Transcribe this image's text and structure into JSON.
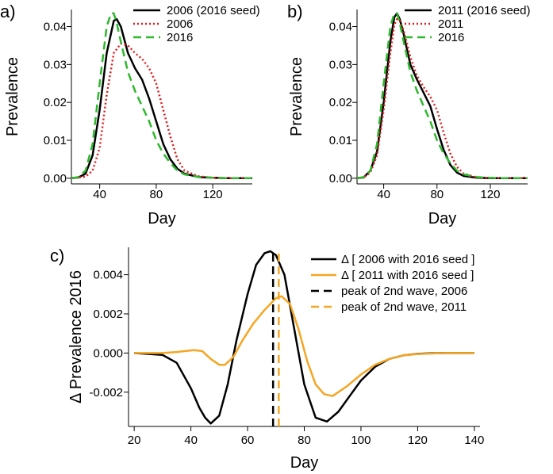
{
  "colors": {
    "black": "#000000",
    "red": "#e41a1c",
    "green": "#2eb82e",
    "orange": "#f5a623"
  },
  "chart_data": [
    {
      "panel_label": "a)",
      "type": "line",
      "xlabel": "Day",
      "ylabel": "Prevalence",
      "xlim": [
        20,
        148
      ],
      "ylim": [
        -0.0015,
        0.0445
      ],
      "xticks": [
        40,
        80,
        120
      ],
      "xtick_labels": [
        "40",
        "80",
        "120"
      ],
      "yticks": [
        0.0,
        0.01,
        0.02,
        0.03,
        0.04
      ],
      "ytick_labels": [
        "0.00",
        "0.01",
        "0.02",
        "0.03",
        "0.04"
      ],
      "legend_position": "top-right",
      "series": [
        {
          "name": "2006 (2016 seed)",
          "color": "#000000",
          "dash": "solid",
          "x": [
            20,
            25,
            30,
            35,
            40,
            45,
            50,
            52,
            55,
            60,
            65,
            70,
            75,
            80,
            85,
            90,
            95,
            100,
            110,
            120,
            130,
            148
          ],
          "y": [
            0.0,
            0.0002,
            0.0012,
            0.006,
            0.018,
            0.033,
            0.0415,
            0.042,
            0.04,
            0.033,
            0.029,
            0.026,
            0.021,
            0.015,
            0.009,
            0.005,
            0.0025,
            0.0012,
            0.0003,
            0.0001,
            0.0,
            0.0
          ]
        },
        {
          "name": "2006",
          "color": "#e41a1c",
          "dash": "dotted",
          "x": [
            20,
            30,
            35,
            40,
            45,
            50,
            55,
            60,
            65,
            70,
            75,
            80,
            85,
            90,
            95,
            100,
            110,
            120,
            130,
            148
          ],
          "y": [
            0.0,
            0.0004,
            0.002,
            0.008,
            0.022,
            0.033,
            0.0355,
            0.035,
            0.033,
            0.0315,
            0.029,
            0.025,
            0.018,
            0.011,
            0.005,
            0.002,
            0.0005,
            0.0001,
            0.0,
            0.0
          ]
        },
        {
          "name": "2016",
          "color": "#2eb82e",
          "dash": "dashed",
          "x": [
            20,
            25,
            30,
            35,
            40,
            45,
            48,
            50,
            52,
            55,
            60,
            65,
            70,
            75,
            80,
            85,
            90,
            95,
            100,
            110,
            120,
            130,
            148
          ],
          "y": [
            0.0,
            0.0003,
            0.002,
            0.009,
            0.025,
            0.04,
            0.0435,
            0.0435,
            0.041,
            0.036,
            0.028,
            0.023,
            0.019,
            0.015,
            0.01,
            0.0065,
            0.004,
            0.002,
            0.001,
            0.0003,
            0.0001,
            0.0,
            0.0
          ]
        }
      ]
    },
    {
      "panel_label": "b)",
      "type": "line",
      "xlabel": "Day",
      "ylabel": "Prevalence",
      "xlim": [
        20,
        148
      ],
      "ylim": [
        -0.0015,
        0.0445
      ],
      "xticks": [
        40,
        80,
        120
      ],
      "xtick_labels": [
        "40",
        "80",
        "120"
      ],
      "yticks": [
        0.0,
        0.01,
        0.02,
        0.03,
        0.04
      ],
      "ytick_labels": [
        "0.00",
        "0.01",
        "0.02",
        "0.03",
        "0.04"
      ],
      "legend_position": "top-right",
      "series": [
        {
          "name": "2011 (2016 seed)",
          "color": "#000000",
          "dash": "solid",
          "x": [
            20,
            25,
            30,
            35,
            40,
            45,
            48,
            50,
            52,
            55,
            60,
            65,
            70,
            75,
            80,
            85,
            90,
            95,
            100,
            110,
            120,
            130,
            148
          ],
          "y": [
            0.0,
            0.0002,
            0.002,
            0.007,
            0.02,
            0.036,
            0.0425,
            0.0435,
            0.042,
            0.038,
            0.03,
            0.026,
            0.0225,
            0.019,
            0.013,
            0.0075,
            0.0035,
            0.0015,
            0.0006,
            0.0001,
            0.0,
            0.0,
            0.0
          ]
        },
        {
          "name": "2011",
          "color": "#e41a1c",
          "dash": "dotted",
          "x": [
            20,
            25,
            30,
            35,
            40,
            45,
            48,
            50,
            52,
            55,
            60,
            65,
            70,
            75,
            80,
            85,
            90,
            95,
            100,
            110,
            120,
            130,
            148
          ],
          "y": [
            0.0,
            0.0002,
            0.0015,
            0.006,
            0.018,
            0.033,
            0.0405,
            0.042,
            0.0415,
            0.039,
            0.032,
            0.027,
            0.024,
            0.0215,
            0.018,
            0.012,
            0.0065,
            0.003,
            0.0012,
            0.0002,
            0.0,
            0.0,
            0.0
          ]
        },
        {
          "name": "2016",
          "color": "#2eb82e",
          "dash": "dashed",
          "x": [
            20,
            25,
            30,
            35,
            40,
            45,
            48,
            50,
            52,
            55,
            60,
            65,
            70,
            75,
            80,
            85,
            90,
            95,
            100,
            110,
            120,
            130,
            148
          ],
          "y": [
            0.0,
            0.0003,
            0.002,
            0.009,
            0.025,
            0.04,
            0.0435,
            0.0435,
            0.041,
            0.036,
            0.028,
            0.023,
            0.019,
            0.015,
            0.01,
            0.0065,
            0.004,
            0.002,
            0.001,
            0.0003,
            0.0001,
            0.0,
            0.0
          ]
        }
      ]
    },
    {
      "panel_label": "c)",
      "type": "line",
      "xlabel": "Day",
      "ylabel": "Δ Prevalence 2016",
      "xlim": [
        18,
        142
      ],
      "ylim": [
        -0.00375,
        0.0054
      ],
      "xticks": [
        20,
        40,
        60,
        80,
        100,
        120,
        140
      ],
      "xtick_labels": [
        "20",
        "40",
        "60",
        "80",
        "100",
        "120",
        "140"
      ],
      "yticks": [
        -0.002,
        0.0,
        0.002,
        0.004
      ],
      "ytick_labels": [
        "-0.002",
        "0.000",
        "0.002",
        "0.004"
      ],
      "legend_position": "top-right",
      "series": [
        {
          "name": "Δ [ 2006 with 2016 seed ]",
          "color": "#000000",
          "dash": "solid",
          "x": [
            20,
            30,
            35,
            40,
            43,
            45,
            47,
            50,
            53,
            56,
            60,
            63,
            66,
            68,
            70,
            73,
            76,
            80,
            84,
            88,
            92,
            96,
            100,
            105,
            110,
            115,
            120,
            125,
            130,
            140
          ],
          "y": [
            0.0,
            -0.0001,
            -0.0005,
            -0.0018,
            -0.0028,
            -0.0033,
            -0.0036,
            -0.0032,
            -0.0016,
            0.0006,
            0.003,
            0.0045,
            0.0051,
            0.0052,
            0.005,
            0.004,
            0.0016,
            -0.0016,
            -0.0033,
            -0.0035,
            -0.003,
            -0.0022,
            -0.0014,
            -0.0007,
            -0.0003,
            -0.00012,
            -4e-05,
            -1e-05,
            0.0,
            0.0
          ]
        },
        {
          "name": "Δ [ 2011 with 2016 seed ]",
          "color": "#f5a623",
          "dash": "solid",
          "x": [
            20,
            30,
            35,
            38,
            41,
            44,
            47,
            50,
            52,
            55,
            58,
            62,
            66,
            70,
            72,
            75,
            78,
            81,
            84,
            87,
            90,
            95,
            100,
            105,
            110,
            115,
            120,
            130,
            140
          ],
          "y": [
            0.0,
            0.0,
            5e-05,
            0.0001,
            0.00015,
            0.0001,
            -0.0003,
            -0.0006,
            -0.0006,
            -0.0002,
            0.0006,
            0.0015,
            0.0022,
            0.0028,
            0.0029,
            0.0025,
            0.0012,
            -0.0004,
            -0.0016,
            -0.0021,
            -0.0022,
            -0.0017,
            -0.0011,
            -0.0006,
            -0.0003,
            -0.00012,
            -5e-05,
            0.0,
            0.0
          ]
        },
        {
          "name": "peak of 2nd wave, 2006",
          "color": "#000000",
          "dash": "dashed",
          "type": "vline",
          "x_value": 69
        },
        {
          "name": "peak of 2nd wave, 2011",
          "color": "#f5a623",
          "dash": "dashed",
          "type": "vline",
          "x_value": 71
        }
      ]
    }
  ]
}
